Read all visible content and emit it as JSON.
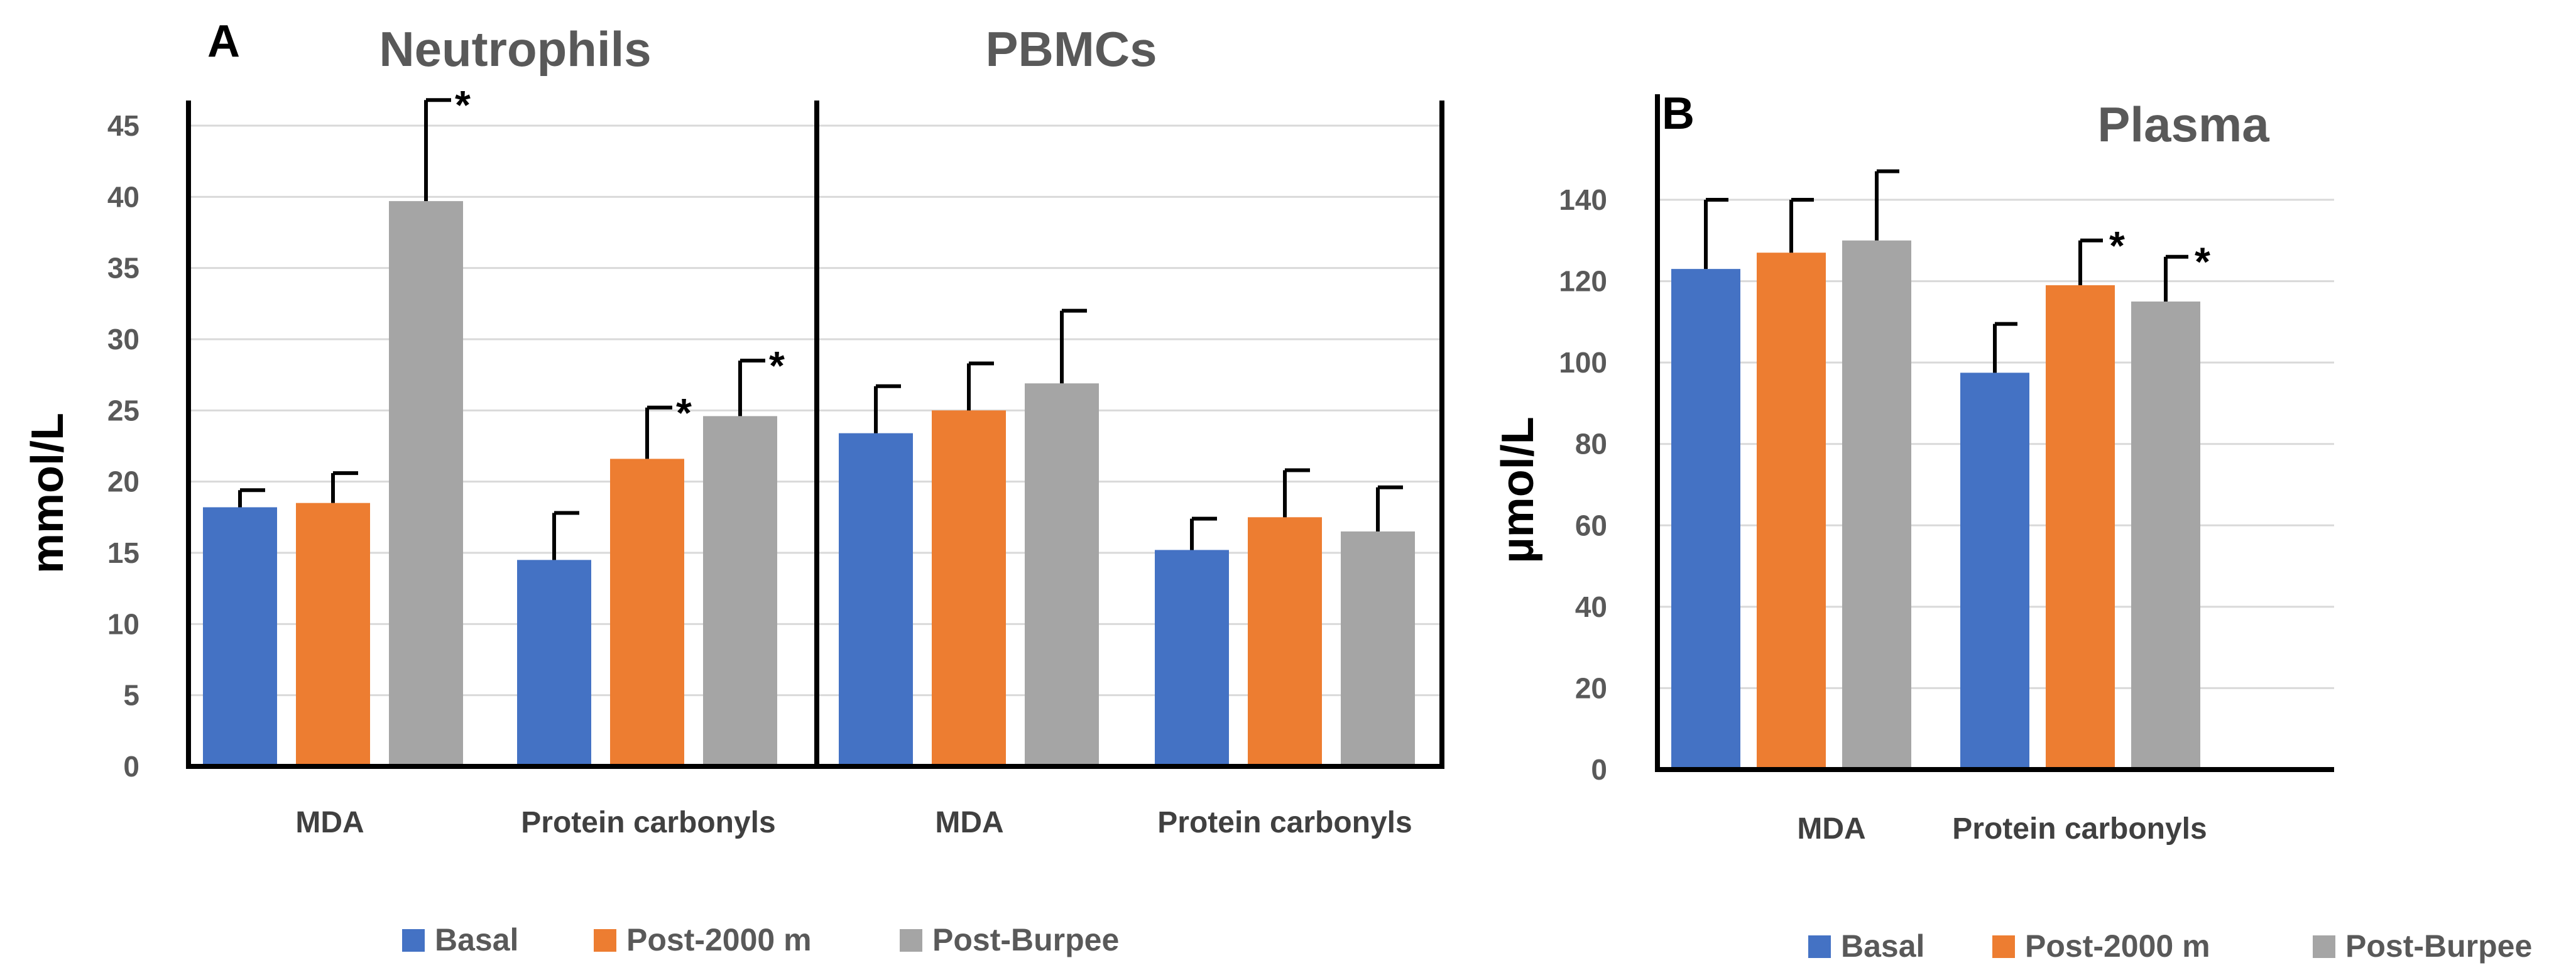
{
  "colors": {
    "basal": "#4472c4",
    "post2000": "#ed7d31",
    "postburpee": "#a5a5a5"
  },
  "legend": [
    "Basal",
    "Post-2000 m",
    "Post-Burpee"
  ],
  "chart_data": [
    {
      "panel": "A",
      "type": "bar",
      "ylabel": "mmol/L",
      "ylim": [
        0,
        45
      ],
      "yticks": [
        0,
        5,
        10,
        15,
        20,
        25,
        30,
        35,
        40,
        45
      ],
      "grid": true,
      "subpanels": [
        {
          "title": "Neutrophils",
          "categories": [
            "MDA",
            "Protein carbonyls"
          ],
          "series": [
            {
              "name": "Basal",
              "values": [
                18.2,
                14.5
              ],
              "errors": [
                1.2,
                3.3
              ],
              "sig": [
                false,
                false
              ]
            },
            {
              "name": "Post-2000 m",
              "values": [
                18.5,
                21.6
              ],
              "errors": [
                2.1,
                3.6
              ],
              "sig": [
                false,
                true
              ]
            },
            {
              "name": "Post-Burpee",
              "values": [
                39.7,
                24.6
              ],
              "errors": [
                7.1,
                3.9
              ],
              "sig": [
                true,
                true
              ]
            }
          ]
        },
        {
          "title": "PBMCs",
          "categories": [
            "MDA",
            "Protein carbonyls"
          ],
          "series": [
            {
              "name": "Basal",
              "values": [
                23.4,
                15.2
              ],
              "errors": [
                3.3,
                2.2
              ],
              "sig": [
                false,
                false
              ]
            },
            {
              "name": "Post-2000 m",
              "values": [
                25.0,
                17.5
              ],
              "errors": [
                3.3,
                3.3
              ],
              "sig": [
                false,
                false
              ]
            },
            {
              "name": "Post-Burpee",
              "values": [
                26.9,
                16.5
              ],
              "errors": [
                5.1,
                3.1
              ],
              "sig": [
                false,
                false
              ]
            }
          ]
        }
      ],
      "legend_position": "bottom"
    },
    {
      "panel": "B",
      "type": "bar",
      "title": "Plasma",
      "ylabel": "µmol/L",
      "ylim": [
        0,
        160
      ],
      "yticks": [
        0,
        20,
        40,
        60,
        80,
        100,
        120,
        140
      ],
      "grid": true,
      "categories": [
        "MDA",
        "Protein carbonyls"
      ],
      "series": [
        {
          "name": "Basal",
          "values": [
            123,
            97.5
          ],
          "errors": [
            17,
            12
          ],
          "sig": [
            false,
            false
          ]
        },
        {
          "name": "Post-2000 m",
          "values": [
            127,
            119
          ],
          "errors": [
            13,
            11
          ],
          "sig": [
            false,
            true
          ]
        },
        {
          "name": "Post-Burpee",
          "values": [
            130,
            115
          ],
          "errors": [
            17,
            11
          ],
          "sig": [
            false,
            true
          ]
        }
      ],
      "legend_position": "bottom"
    }
  ],
  "significance_marker": "*"
}
